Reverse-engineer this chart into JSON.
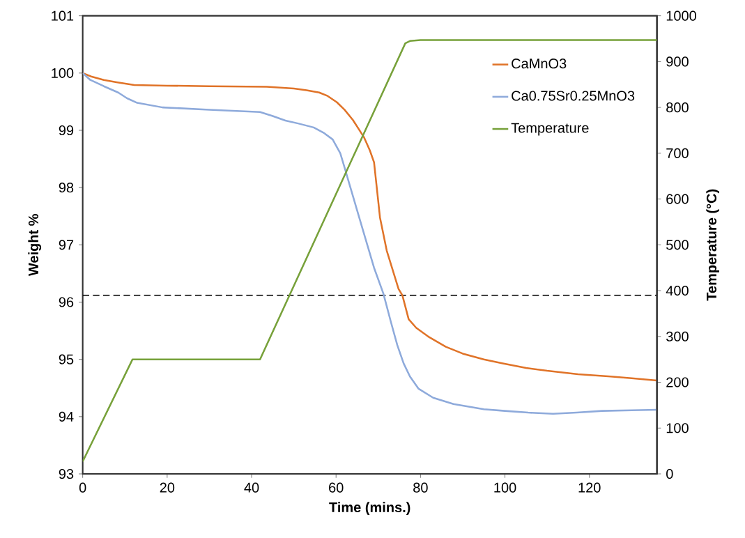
{
  "chart_data": {
    "type": "line",
    "xlabel": "Time (mins.)",
    "ylabel": "Weight %",
    "y2label": "Temperature (°C)",
    "xlim": [
      0,
      136
    ],
    "xticks": [
      0,
      20,
      40,
      60,
      80,
      100,
      120
    ],
    "ylim": [
      93,
      101
    ],
    "yticks": [
      93,
      94,
      95,
      96,
      97,
      98,
      99,
      100,
      101
    ],
    "y2lim": [
      0,
      1000
    ],
    "y2ticks": [
      0,
      100,
      200,
      300,
      400,
      500,
      600,
      700,
      800,
      900,
      1000
    ],
    "legend": "top right",
    "ref_lines": [
      {
        "axis": "y",
        "value": 96.12,
        "color": "#000000",
        "line_style": "dashed"
      }
    ],
    "series": [
      {
        "name": "CaMnO3",
        "color": "#e07328",
        "x": [
          0,
          2,
          5,
          8,
          12.2,
          20,
          30,
          43.6,
          50,
          53,
          56,
          58,
          60.2,
          62,
          64,
          66.6,
          68,
          69,
          70.4,
          72,
          74.8,
          75.7,
          77.2,
          79,
          81.8,
          86,
          90,
          95,
          99.5,
          105,
          110,
          117.3,
          125,
          130,
          136
        ],
        "values": [
          100,
          99.94,
          99.88,
          99.84,
          99.79,
          99.78,
          99.77,
          99.76,
          99.73,
          99.7,
          99.66,
          99.6,
          99.49,
          99.36,
          99.18,
          98.88,
          98.65,
          98.44,
          97.48,
          96.9,
          96.23,
          96.12,
          95.7,
          95.55,
          95.4,
          95.22,
          95.1,
          95.0,
          94.93,
          94.85,
          94.8,
          94.74,
          94.7,
          94.67,
          94.63
        ]
      },
      {
        "name": "Ca0.75Sr0.25MnO3",
        "color": "#8eaadb",
        "x": [
          0,
          1.8,
          5,
          8.4,
          10.5,
          12.9,
          18.9,
          30,
          42,
          45,
          48,
          51,
          54.7,
          57,
          59.2,
          61,
          62.3,
          63,
          65,
          67.4,
          69,
          71.2,
          73,
          74.5,
          76,
          77.5,
          79.5,
          83,
          87.8,
          95,
          100,
          105.5,
          111.4,
          117,
          123,
          130,
          136
        ],
        "values": [
          100,
          99.88,
          99.77,
          99.66,
          99.56,
          99.48,
          99.4,
          99.36,
          99.32,
          99.25,
          99.17,
          99.12,
          99.05,
          98.96,
          98.84,
          98.6,
          98.28,
          98.1,
          97.6,
          97.0,
          96.6,
          96.15,
          95.65,
          95.25,
          94.93,
          94.7,
          94.49,
          94.33,
          94.22,
          94.13,
          94.1,
          94.07,
          94.05,
          94.07,
          94.1,
          94.11,
          94.12
        ]
      },
      {
        "name": "Temperature",
        "color": "#77a13a",
        "axis": "y2",
        "x": [
          0,
          11.8,
          42,
          76.4,
          77.5,
          80,
          136
        ],
        "values": [
          27,
          250,
          250,
          940,
          945,
          947,
          947
        ]
      }
    ]
  }
}
